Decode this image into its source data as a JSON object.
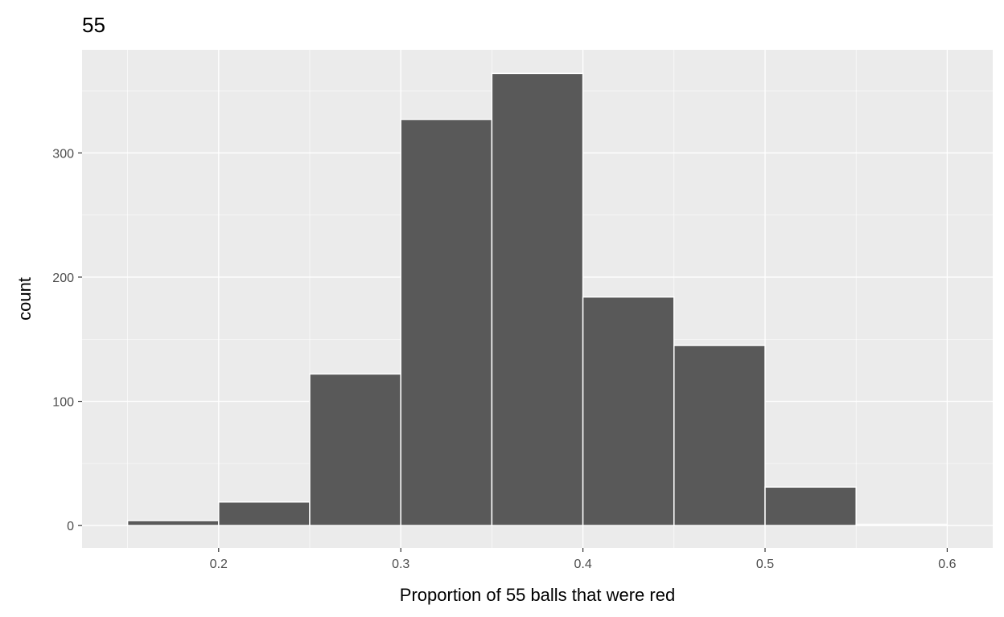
{
  "chart_data": {
    "type": "bar",
    "title": "55",
    "xlabel": "Proportion of 55 balls that were red",
    "ylabel": "count",
    "bin_width": 0.05,
    "bins": [
      {
        "x0": 0.15,
        "x1": 0.2,
        "count": 4
      },
      {
        "x0": 0.2,
        "x1": 0.25,
        "count": 19
      },
      {
        "x0": 0.25,
        "x1": 0.3,
        "count": 122
      },
      {
        "x0": 0.3,
        "x1": 0.35,
        "count": 327
      },
      {
        "x0": 0.35,
        "x1": 0.4,
        "count": 364
      },
      {
        "x0": 0.4,
        "x1": 0.45,
        "count": 184
      },
      {
        "x0": 0.45,
        "x1": 0.5,
        "count": 145
      },
      {
        "x0": 0.5,
        "x1": 0.55,
        "count": 31
      },
      {
        "x0": 0.55,
        "x1": 0.6,
        "count": 1
      }
    ],
    "xticks": [
      "0.2",
      "0.3",
      "0.4",
      "0.5",
      "0.6"
    ],
    "yticks": [
      "0",
      "100",
      "200",
      "300"
    ],
    "xlim": [
      0.125,
      0.625
    ],
    "ylim": [
      -18,
      383
    ],
    "grid": true,
    "colors": {
      "bar": "#595959",
      "bar_edge": "#ffffff",
      "panel": "#ebebeb",
      "grid": "#ffffff"
    }
  }
}
